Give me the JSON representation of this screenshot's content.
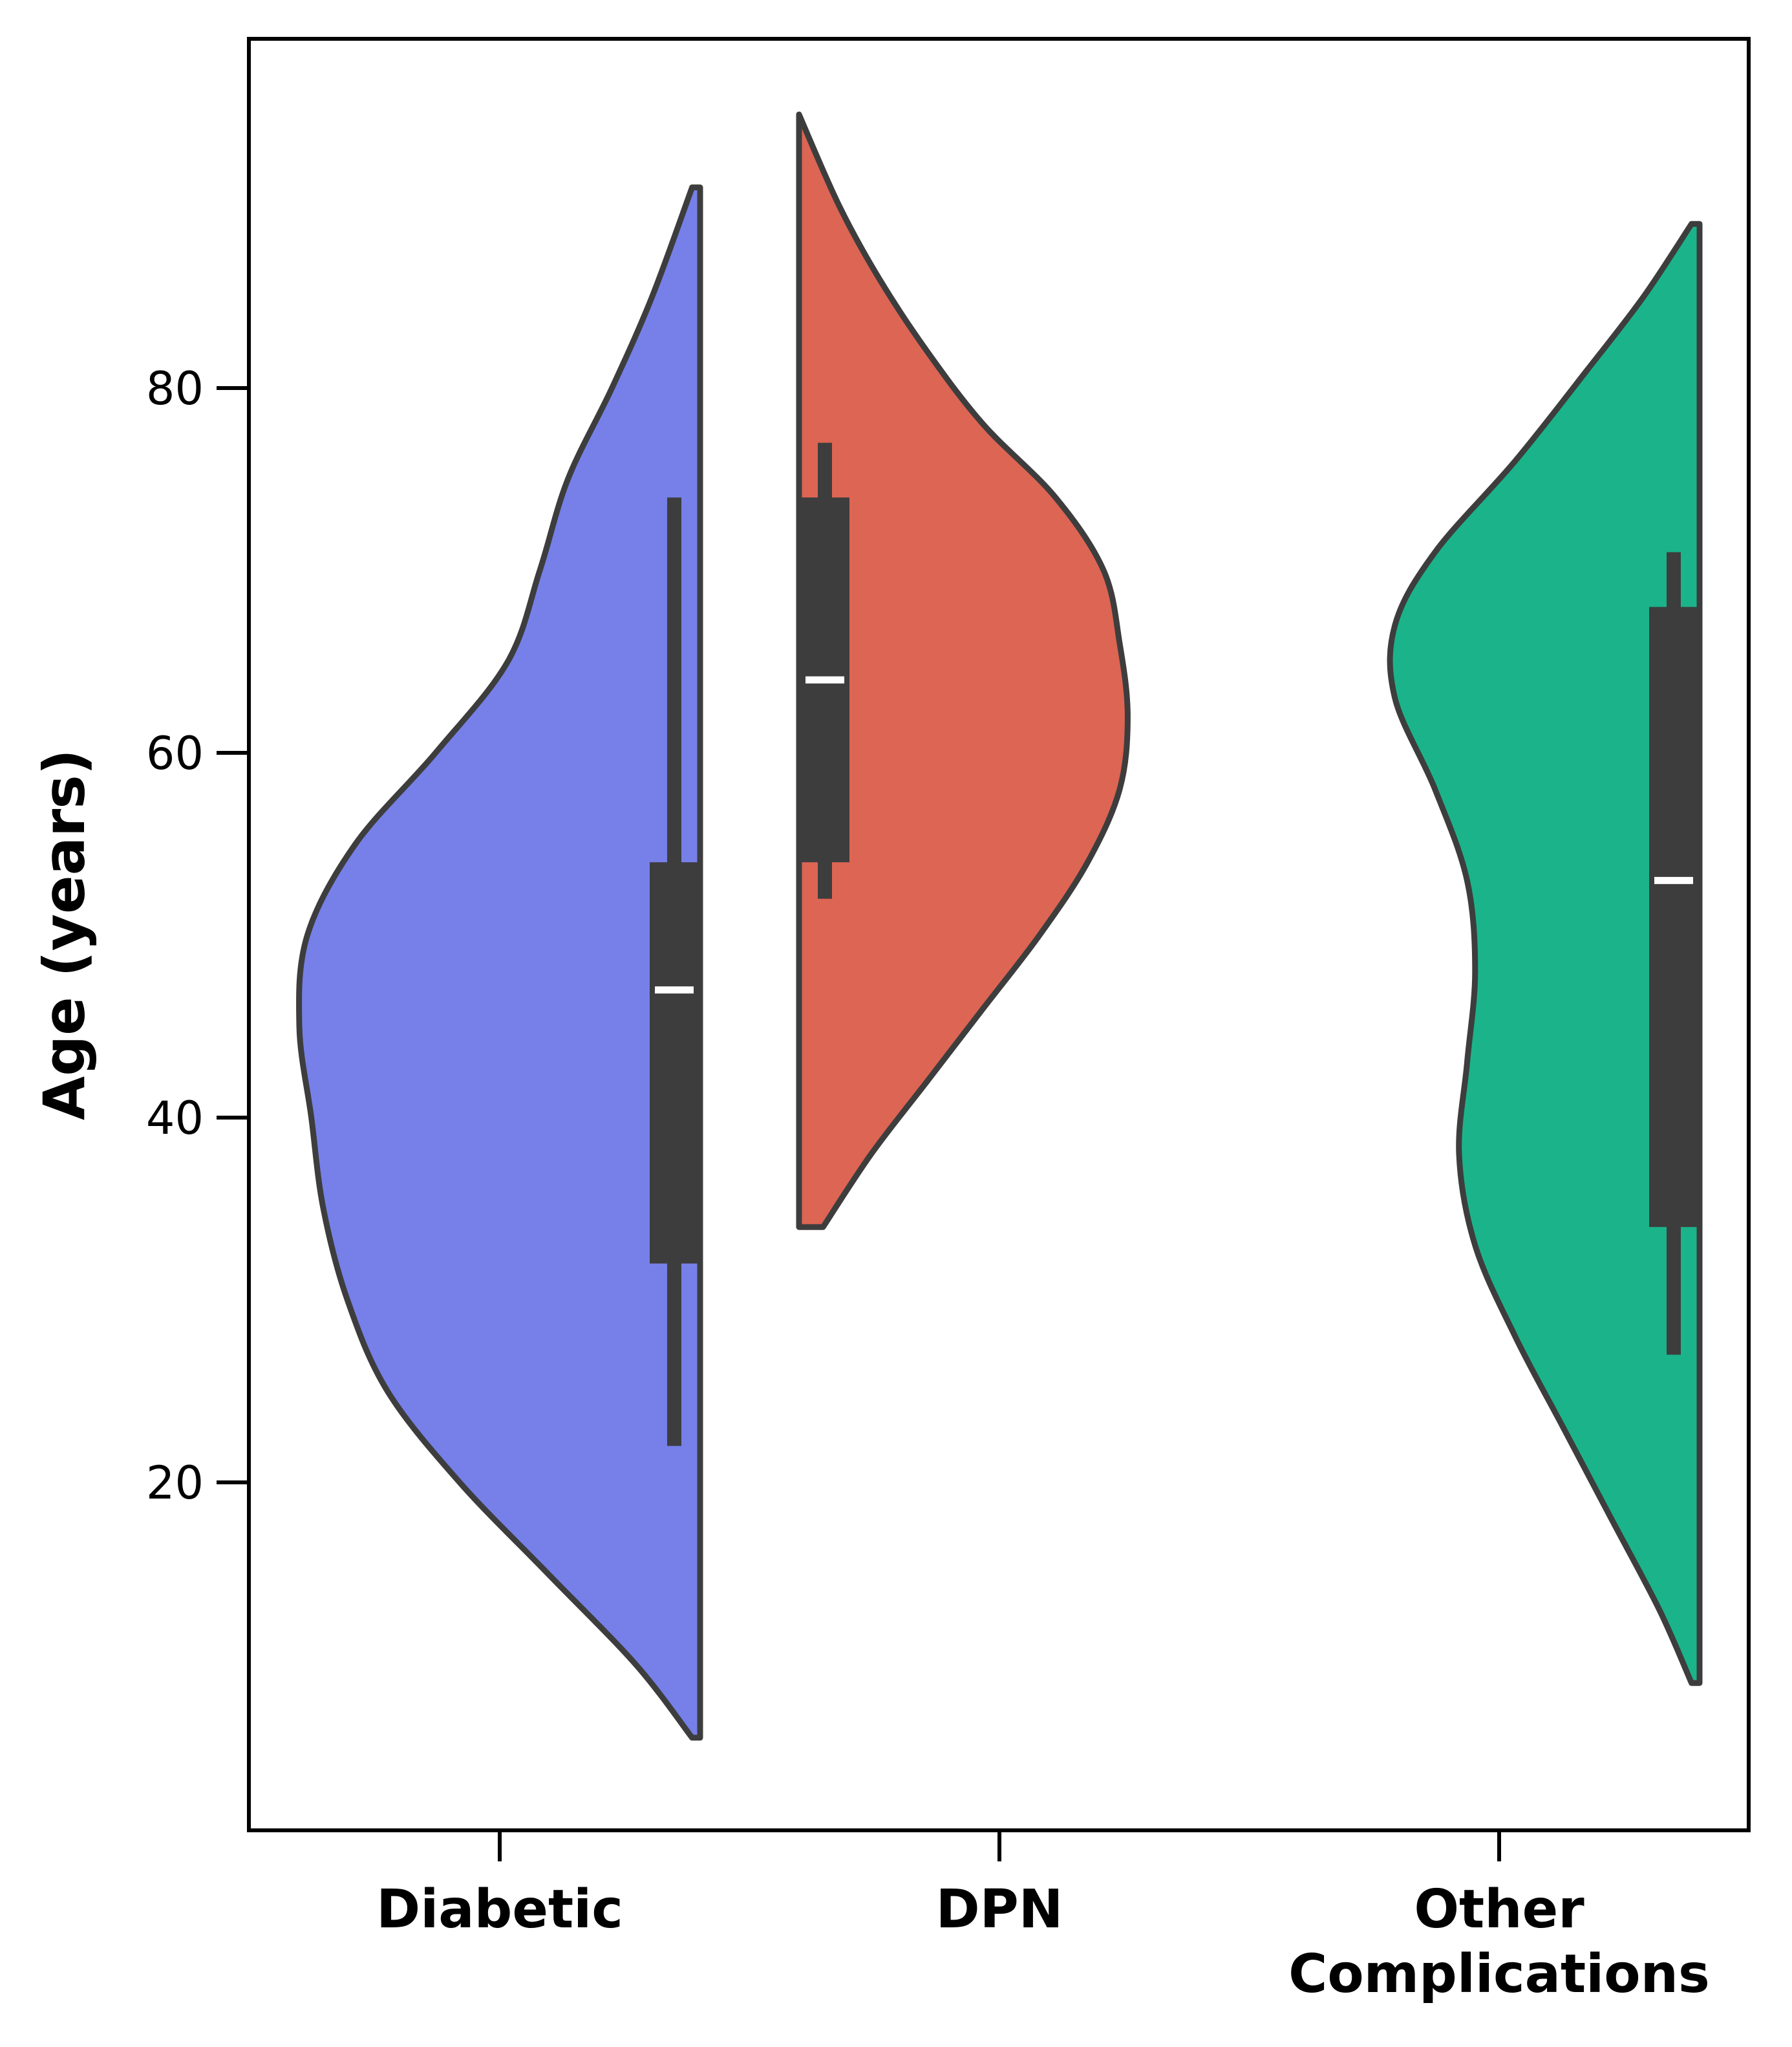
{
  "chart_data": {
    "type": "violin",
    "split": true,
    "categories": [
      "Diabetic",
      "DPN",
      "Other\nComplications"
    ],
    "xlabel": "",
    "ylabel": "Age (years)",
    "yticks": [
      20,
      40,
      60,
      80
    ],
    "ylim": [
      2,
      100
    ],
    "grid": false,
    "series": [
      {
        "category": "Diabetic",
        "side": "left",
        "color": "#7680E8",
        "range": [
          6,
          91
        ],
        "median": 47,
        "quartiles": [
          32,
          54
        ],
        "whiskers": [
          22,
          74
        ],
        "density": [
          [
            6,
            0.02
          ],
          [
            10,
            0.16
          ],
          [
            15,
            0.38
          ],
          [
            20,
            0.6
          ],
          [
            25,
            0.78
          ],
          [
            30,
            0.88
          ],
          [
            35,
            0.94
          ],
          [
            40,
            0.97
          ],
          [
            45,
            1.0
          ],
          [
            50,
            0.98
          ],
          [
            55,
            0.86
          ],
          [
            60,
            0.66
          ],
          [
            65,
            0.48
          ],
          [
            70,
            0.4
          ],
          [
            75,
            0.33
          ],
          [
            80,
            0.22
          ],
          [
            85,
            0.12
          ],
          [
            91,
            0.02
          ]
        ]
      },
      {
        "category": "DPN",
        "side": "right",
        "color": "#DD6553",
        "range": [
          34,
          95
        ],
        "median": 64,
        "quartiles": [
          54,
          74
        ],
        "whiskers": [
          52,
          77
        ],
        "density": [
          [
            34,
            0.06
          ],
          [
            38,
            0.18
          ],
          [
            42,
            0.32
          ],
          [
            46,
            0.46
          ],
          [
            50,
            0.6
          ],
          [
            54,
            0.72
          ],
          [
            58,
            0.8
          ],
          [
            62,
            0.82
          ],
          [
            66,
            0.8
          ],
          [
            70,
            0.76
          ],
          [
            74,
            0.64
          ],
          [
            78,
            0.46
          ],
          [
            82,
            0.32
          ],
          [
            86,
            0.2
          ],
          [
            90,
            0.1
          ],
          [
            95,
            0.0
          ]
        ]
      },
      {
        "category": "Other\nComplications",
        "side": "left",
        "color": "#1BB48A",
        "range": [
          9,
          89
        ],
        "median": 53,
        "quartiles": [
          34,
          68
        ],
        "whiskers": [
          27,
          71
        ],
        "density": [
          [
            9,
            0.02
          ],
          [
            13,
            0.1
          ],
          [
            18,
            0.22
          ],
          [
            23,
            0.34
          ],
          [
            28,
            0.46
          ],
          [
            33,
            0.56
          ],
          [
            38,
            0.6
          ],
          [
            43,
            0.58
          ],
          [
            48,
            0.56
          ],
          [
            53,
            0.58
          ],
          [
            58,
            0.66
          ],
          [
            63,
            0.76
          ],
          [
            67,
            0.76
          ],
          [
            71,
            0.66
          ],
          [
            76,
            0.46
          ],
          [
            81,
            0.28
          ],
          [
            85,
            0.14
          ],
          [
            89,
            0.02
          ]
        ]
      }
    ]
  }
}
